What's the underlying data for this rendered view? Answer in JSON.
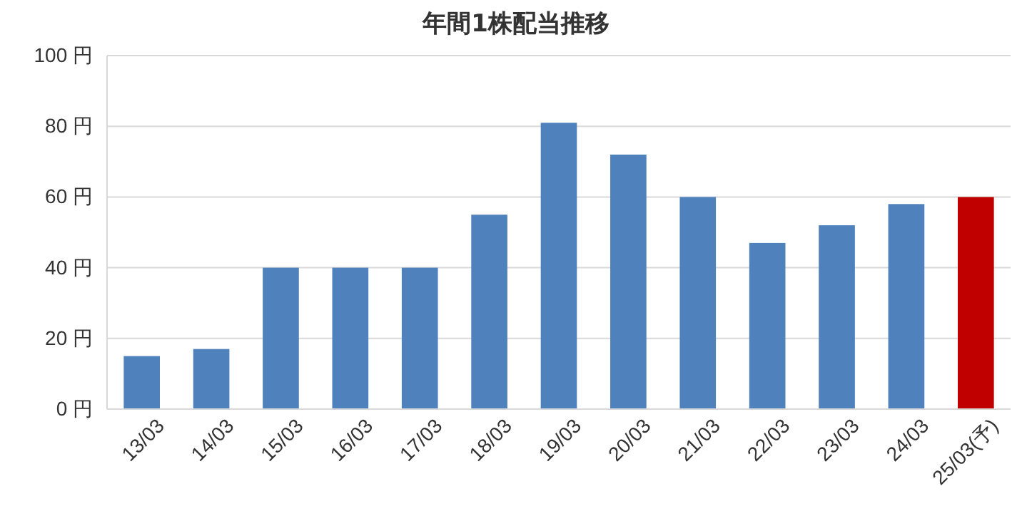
{
  "chart_data": {
    "type": "bar",
    "title": "年間1株配当推移",
    "categories": [
      "13/03",
      "14/03",
      "15/03",
      "16/03",
      "17/03",
      "18/03",
      "19/03",
      "20/03",
      "21/03",
      "22/03",
      "23/03",
      "24/03",
      "25/03(予)"
    ],
    "values": [
      15,
      17,
      40,
      40,
      40,
      55,
      81,
      72,
      60,
      47,
      52,
      58,
      60
    ],
    "colors": [
      "#4f81bd",
      "#4f81bd",
      "#4f81bd",
      "#4f81bd",
      "#4f81bd",
      "#4f81bd",
      "#4f81bd",
      "#4f81bd",
      "#4f81bd",
      "#4f81bd",
      "#4f81bd",
      "#4f81bd",
      "#c00000"
    ],
    "ylim": [
      0,
      100
    ],
    "yticks": [
      {
        "value": 0,
        "label": "0 円"
      },
      {
        "value": 20,
        "label": "20 円"
      },
      {
        "value": 40,
        "label": "40 円"
      },
      {
        "value": 60,
        "label": "60 円"
      },
      {
        "value": 80,
        "label": "80 円"
      },
      {
        "value": 100,
        "label": "100 円"
      }
    ],
    "grid": "y"
  }
}
